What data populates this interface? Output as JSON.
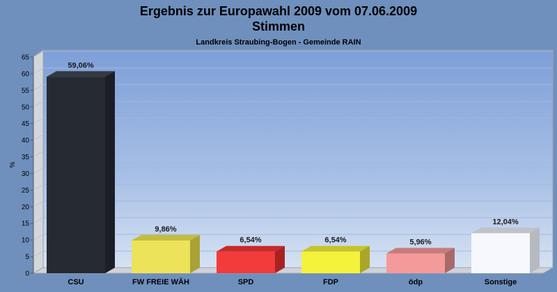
{
  "chart_data": {
    "type": "bar",
    "title": "Ergebnis zur Europawahl 2009 vom 07.06.2009",
    "subtitle": "Stimmen",
    "subsubtitle": "Landkreis Straubing-Bogen - Gemeinde RAIN",
    "ylabel": "%",
    "xlabel": "",
    "ylim": [
      0,
      65
    ],
    "ytick_step": 5,
    "grid": true,
    "legend": "none",
    "categories": [
      "CSU",
      "FW FREIE WÄH",
      "SPD",
      "FDP",
      "ödp",
      "Sonstige"
    ],
    "values": [
      59.06,
      9.86,
      6.54,
      6.54,
      5.96,
      12.04
    ],
    "value_labels": [
      "59,06%",
      "9,86%",
      "6,54%",
      "6,54%",
      "5,96%",
      "12,04%"
    ],
    "colors": [
      "#262a33",
      "#ece35a",
      "#f23b3b",
      "#f5f23c",
      "#f49a9a",
      "#f6f8fe"
    ],
    "top_colors": [
      "#34383f",
      "#c3bc40",
      "#c82a2a",
      "#c6c42d",
      "#c67c7c",
      "#bfc2c9"
    ],
    "side_colors": [
      "#1b1e25",
      "#a9a337",
      "#a82222",
      "#aaa727",
      "#a86969",
      "#b6b9c0"
    ]
  }
}
